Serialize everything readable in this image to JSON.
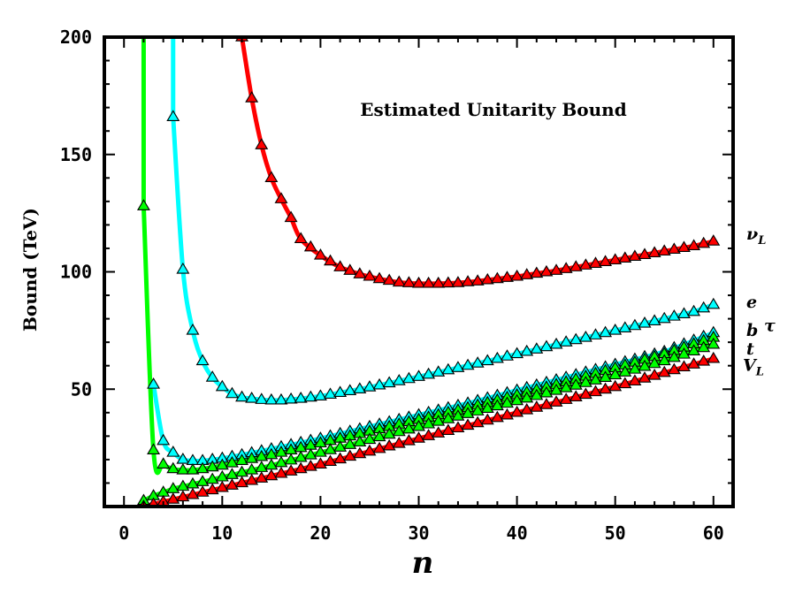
{
  "chart_data": {
    "type": "line",
    "title": "",
    "annotation": "Estimated Unitarity Bound",
    "xlabel": "n",
    "ylabel": "Bound (TeV)",
    "xlim": [
      -2,
      62
    ],
    "ylim": [
      0,
      200
    ],
    "xticks": [
      0,
      10,
      20,
      30,
      40,
      50,
      60
    ],
    "yticks": [
      50,
      100,
      150,
      200
    ],
    "grid": false,
    "legend": "none",
    "series": [
      {
        "name": "ν",
        "name_sub": "L",
        "label_value": 116,
        "color": "#ff0000",
        "x": [
          12,
          13,
          14,
          15,
          16,
          17,
          18,
          20,
          22,
          24,
          26,
          28,
          30,
          32,
          34,
          36,
          38,
          40,
          42,
          44,
          46,
          48,
          50,
          52,
          54,
          56,
          58,
          60
        ],
        "y": [
          200,
          174,
          154,
          140,
          131,
          123,
          114,
          107,
          102,
          99,
          97,
          95.5,
          95,
          95,
          95.3,
          96,
          97,
          98,
          99.3,
          100.5,
          102,
          103.5,
          105,
          106.5,
          108,
          109.5,
          111,
          113
        ]
      },
      {
        "name": "e",
        "name_sub": "",
        "label_value": 87,
        "color": "#00ffff",
        "x": [
          5,
          6,
          7,
          8,
          9,
          10,
          11,
          12,
          13,
          14,
          15,
          16,
          18,
          20,
          22,
          24,
          26,
          28,
          30,
          32,
          34,
          36,
          38,
          40,
          42,
          44,
          46,
          48,
          50,
          52,
          54,
          56,
          58,
          60
        ],
        "y": [
          166,
          101,
          75,
          62,
          55,
          51,
          48,
          46.5,
          46,
          45.5,
          45.3,
          45.3,
          46,
          47,
          48.5,
          50,
          51.7,
          53.5,
          55.3,
          57.2,
          59.1,
          61,
          63,
          65,
          67,
          69,
          71,
          73,
          75,
          77,
          79,
          81,
          83,
          86
        ]
      },
      {
        "name": "b",
        "name_sub": "",
        "label_value": 75,
        "color": "#00ffff",
        "x": [
          3,
          4,
          5,
          6,
          7,
          8,
          10,
          12,
          15,
          20,
          25,
          30,
          35,
          40,
          45,
          50,
          55,
          60
        ],
        "y": [
          52,
          28,
          23,
          20,
          19.5,
          19.5,
          20.5,
          22,
          24.5,
          29,
          34,
          39,
          44,
          49.5,
          55,
          60.5,
          66,
          74
        ]
      },
      {
        "name": "τ",
        "name_sub": "",
        "label_value": 77,
        "color": "#00ff00",
        "x": [
          2,
          3,
          4,
          5,
          6,
          7,
          8,
          10,
          12,
          15,
          20,
          25,
          30,
          35,
          40,
          45,
          50,
          55,
          60
        ],
        "y": [
          128,
          24,
          18,
          16,
          15.5,
          15.5,
          16,
          17.5,
          19.5,
          22,
          27,
          32,
          37,
          42,
          47.5,
          53,
          59,
          65,
          72
        ]
      },
      {
        "name": "t",
        "name_sub": "",
        "label_value": 67,
        "color": "#00ff00",
        "x": [
          2,
          3,
          4,
          5,
          6,
          8,
          10,
          15,
          20,
          25,
          30,
          35,
          40,
          45,
          50,
          55,
          60
        ],
        "y": [
          2.5,
          4.5,
          6,
          7.5,
          8.5,
          10.5,
          12.5,
          17.5,
          23,
          28.5,
          34,
          39.5,
          45,
          50.5,
          56,
          62,
          69
        ]
      },
      {
        "name": "V",
        "name_sub": "L",
        "label_value": 60,
        "color": "#ff0000",
        "x": [
          2,
          3,
          4,
          5,
          6,
          8,
          10,
          15,
          20,
          25,
          30,
          35,
          40,
          45,
          50,
          55,
          60
        ],
        "y": [
          0,
          1,
          2,
          3,
          4,
          6,
          8,
          13,
          18,
          23.5,
          29,
          34.5,
          40,
          45.5,
          51,
          57,
          63
        ]
      }
    ]
  }
}
